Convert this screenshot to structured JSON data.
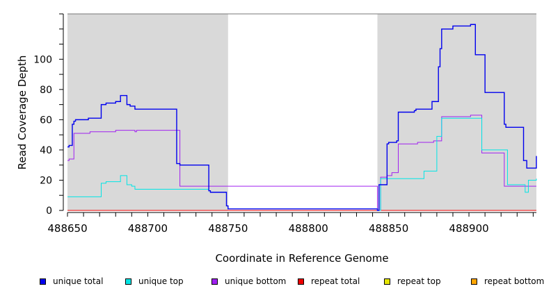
{
  "chart_data": {
    "type": "line",
    "xlabel": "Coordinate in Reference Genome",
    "ylabel": "Read Coverage Depth",
    "xlim": [
      488650,
      488942
    ],
    "ylim": [
      0,
      130
    ],
    "xticks": [
      488650,
      488700,
      488750,
      488800,
      488850,
      488900
    ],
    "yticks": [
      0,
      20,
      40,
      60,
      80,
      100
    ],
    "shaded_regions": [
      [
        488650,
        488750
      ],
      [
        488843,
        488942
      ]
    ],
    "colors": {
      "shade": "#d9d9d9",
      "axis": "#000000"
    },
    "legend_position": "bottom",
    "series": [
      {
        "name": "unique total",
        "color": "#0000ee",
        "x": [
          488650,
          488651,
          488653,
          488654,
          488655,
          488663,
          488671,
          488674,
          488680,
          488683,
          488687,
          488689,
          488692,
          488717,
          488718,
          488720,
          488738,
          488739,
          488749,
          488750,
          488843,
          488844,
          488849,
          488850,
          488855,
          488856,
          488866,
          488867,
          488877,
          488881,
          488882,
          488883,
          488890,
          488901,
          488904,
          488910,
          488922,
          488923,
          488934,
          488936,
          488942
        ],
        "y": [
          42,
          43,
          57,
          59,
          60,
          61,
          70,
          71,
          72,
          76,
          70,
          69,
          67,
          67,
          31,
          30,
          13,
          12,
          3,
          1,
          0,
          17,
          44,
          45,
          46,
          65,
          66,
          67,
          72,
          95,
          107,
          120,
          122,
          123,
          103,
          78,
          57,
          55,
          33,
          28,
          36
        ]
      },
      {
        "name": "unique top",
        "color": "#00e5e5",
        "x": [
          488650,
          488671,
          488674,
          488683,
          488687,
          488690,
          488692,
          488720,
          488738,
          488739,
          488749,
          488750,
          488843,
          488845,
          488872,
          488880,
          488883,
          488903,
          488908,
          488924,
          488935,
          488937,
          488942
        ],
        "y": [
          9,
          18,
          19,
          23,
          17,
          16,
          14,
          14,
          13,
          12,
          3,
          1,
          0,
          21,
          26,
          49,
          61,
          61,
          40,
          17,
          12,
          20,
          21
        ]
      },
      {
        "name": "unique bottom",
        "color": "#a020f0",
        "x": [
          488650,
          488651,
          488654,
          488664,
          488680,
          488692,
          488693,
          488717,
          488720,
          488843,
          488845,
          488849,
          488852,
          488856,
          488868,
          488878,
          488883,
          488892,
          488901,
          488908,
          488922,
          488942
        ],
        "y": [
          33,
          34,
          51,
          52,
          53,
          52,
          53,
          53,
          16,
          0,
          22,
          23,
          25,
          44,
          45,
          46,
          62,
          62,
          63,
          38,
          16,
          16
        ]
      },
      {
        "name": "repeat total",
        "color": "#ee0000",
        "x": [
          488650,
          488942
        ],
        "y": [
          0,
          0
        ]
      },
      {
        "name": "repeat top",
        "color": "#e5e500",
        "x": [
          488650,
          488942
        ],
        "y": [
          0,
          0
        ]
      },
      {
        "name": "repeat bottom",
        "color": "#ffa500",
        "x": [
          488650,
          488942
        ],
        "y": [
          0,
          0
        ]
      }
    ]
  }
}
